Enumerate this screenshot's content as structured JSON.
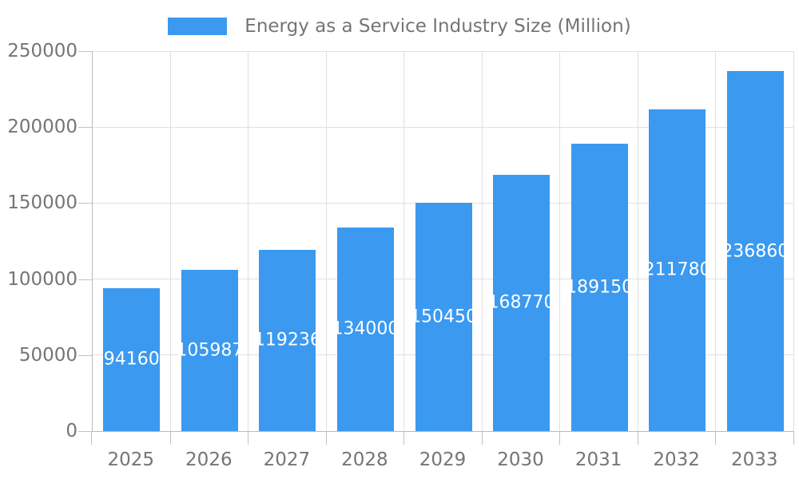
{
  "legend": {
    "label": "Energy as a Service Industry Size (Million)"
  },
  "colors": {
    "bar": "#3B99F0",
    "grid": "#e0e0e0",
    "axis": "#b9b9b9",
    "tick": "#c2c2c2",
    "label_text": "#757575",
    "value_text": "#ffffff",
    "background": "#ffffff"
  },
  "chart_data": {
    "type": "bar",
    "title": "Energy as a Service Industry Size (Million)",
    "categories": [
      "2025",
      "2026",
      "2027",
      "2028",
      "2029",
      "2030",
      "2031",
      "2032",
      "2033"
    ],
    "values": [
      94160,
      105987,
      119236,
      134000,
      150450,
      168770,
      189150,
      211780,
      236860
    ],
    "xlabel": "",
    "ylabel": "",
    "ylim": [
      0,
      250000
    ],
    "yticks": [
      0,
      50000,
      100000,
      150000,
      200000,
      250000
    ],
    "grid": true,
    "legend_position": "top",
    "value_labels": "inside-center"
  }
}
